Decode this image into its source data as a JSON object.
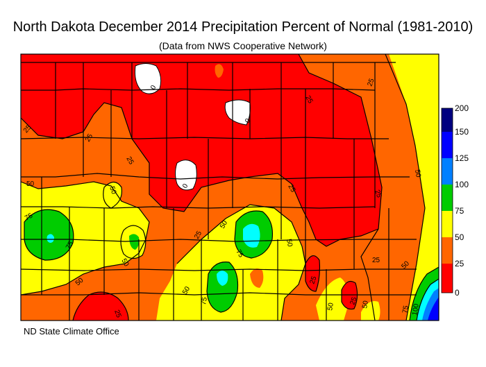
{
  "title": "North Dakota December 2014 Precipitation Percent of Normal (1981-2010)",
  "subtitle": "(Data from NWS Cooperative Network)",
  "credit": "ND State Climate Office",
  "legend": {
    "ticks": [
      "200",
      "150",
      "125",
      "100",
      "75",
      "50",
      "25",
      "0"
    ],
    "colors": {
      "bin_0_25": "#ff0000",
      "bin_25_50": "#ff6600",
      "bin_50_75": "#ffff00",
      "bin_75_100": "#00cc00",
      "bin_100_125": "#00ffff",
      "bin_125_150": "#0080ff",
      "bin_150_200": "#0000ff",
      "bin_200_plus": "#000080",
      "above_max": "#ffffff"
    }
  },
  "contour_labels": [
    "25",
    "25",
    "25",
    "25",
    "25",
    "25",
    "25",
    "25",
    "25",
    "25",
    "25",
    "25",
    "50",
    "50",
    "50",
    "50",
    "50",
    "50",
    "50",
    "50",
    "50",
    "50",
    "50",
    "75",
    "75",
    "75",
    "75",
    "75",
    "100",
    "0",
    "0",
    "0"
  ]
}
